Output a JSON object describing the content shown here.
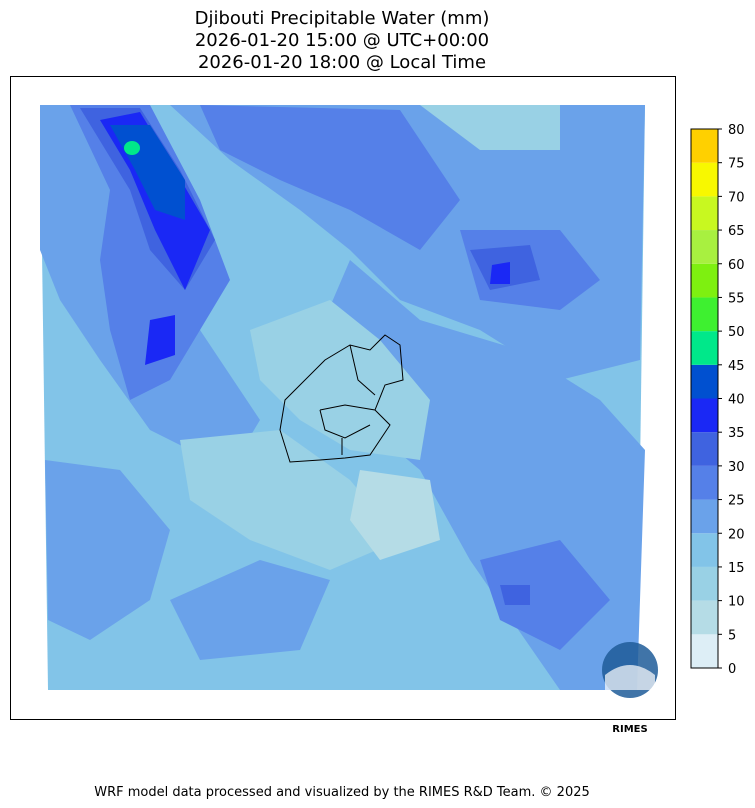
{
  "header": {
    "title_lines": [
      "Djibouti Precipitable Water (mm)",
      "2026-01-20 15:00 @ UTC+00:00",
      "2026-01-20 18:00 @ Local Time"
    ]
  },
  "colorbar": {
    "ticks": [
      0,
      5,
      10,
      15,
      20,
      25,
      30,
      35,
      40,
      45,
      50,
      55,
      60,
      65,
      70,
      75,
      80
    ],
    "colors": [
      "#ddeef6",
      "#b5dce6",
      "#99d1e5",
      "#82c4e8",
      "#6aa2ea",
      "#5580e8",
      "#3f63e0",
      "#1a28f5",
      "#0050d0",
      "#00e88a",
      "#3ef030",
      "#7ef010",
      "#a8f040",
      "#c8f820",
      "#f8f800",
      "#ffd000"
    ]
  },
  "logo": {
    "label": "RIMES"
  },
  "footer": {
    "text": "WRF model data processed and visualized by the RIMES R&D Team. © 2025"
  }
}
